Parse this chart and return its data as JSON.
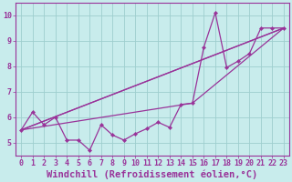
{
  "xlabel": "Windchill (Refroidissement éolien,°C)",
  "xlim": [
    -0.5,
    23.5
  ],
  "ylim": [
    4.5,
    10.5
  ],
  "xticks": [
    0,
    1,
    2,
    3,
    4,
    5,
    6,
    7,
    8,
    9,
    10,
    11,
    12,
    13,
    14,
    15,
    16,
    17,
    18,
    19,
    20,
    21,
    22,
    23
  ],
  "yticks": [
    5,
    6,
    7,
    8,
    9,
    10
  ],
  "background_color": "#c8ecec",
  "grid_color": "#9ecece",
  "line_color": "#993399",
  "line1_x": [
    0,
    1,
    2,
    3,
    4,
    5,
    6,
    7,
    8,
    9,
    10,
    11,
    12,
    13,
    14,
    15,
    16,
    17,
    18,
    19,
    20,
    21,
    22,
    23
  ],
  "line1_y": [
    5.5,
    6.2,
    5.7,
    6.0,
    5.1,
    5.1,
    4.7,
    5.7,
    5.3,
    5.1,
    5.35,
    5.55,
    5.8,
    5.6,
    6.5,
    6.55,
    8.75,
    10.1,
    7.95,
    8.2,
    8.5,
    9.5,
    9.5,
    9.5
  ],
  "line2_x": [
    0,
    23
  ],
  "line2_y": [
    5.5,
    9.5
  ],
  "line3_x": [
    0,
    15,
    23
  ],
  "line3_y": [
    5.5,
    6.55,
    9.5
  ],
  "line4_x": [
    0,
    17,
    23
  ],
  "line4_y": [
    5.5,
    8.45,
    9.5
  ],
  "fontsize_tick": 6,
  "fontsize_xlabel": 7.5
}
